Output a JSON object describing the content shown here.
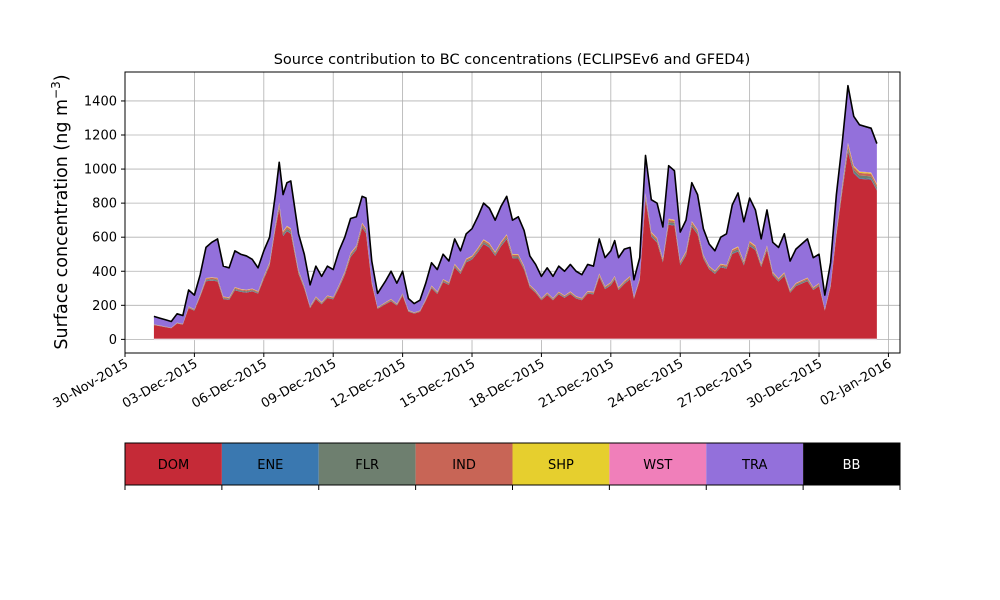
{
  "chart_data": {
    "type": "area",
    "stacked": true,
    "title": "Source contribution to BC concentrations (ECLIPSEv6 and GFED4)",
    "ylabel_main": "Surface concentration (ng m",
    "ylabel_sup": "−3",
    "ylabel_close": ")",
    "xlim": [
      "2015-11-30T00:00",
      "2016-01-02T12:00"
    ],
    "ylim": [
      -80,
      1570
    ],
    "yticks": [
      0,
      200,
      400,
      600,
      800,
      1000,
      1200,
      1400
    ],
    "ytick_labels": [
      "0",
      "200",
      "400",
      "600",
      "800",
      "1000",
      "1200",
      "1400"
    ],
    "xticks": [
      "2015-11-30",
      "2015-12-03",
      "2015-12-06",
      "2015-12-09",
      "2015-12-12",
      "2015-12-15",
      "2015-12-18",
      "2015-12-21",
      "2015-12-24",
      "2015-12-27",
      "2015-12-30",
      "2016-01-02"
    ],
    "xtick_labels": [
      "30-Nov-2015",
      "03-Dec-2015",
      "06-Dec-2015",
      "09-Dec-2015",
      "12-Dec-2015",
      "15-Dec-2015",
      "18-Dec-2015",
      "21-Dec-2015",
      "24-Dec-2015",
      "27-Dec-2015",
      "30-Dec-2015",
      "02-Jan-2016"
    ],
    "grid": true,
    "legend_position": "below",
    "series_order": [
      "DOM",
      "ENE",
      "FLR",
      "IND",
      "SHP",
      "WST",
      "TRA",
      "BB"
    ],
    "series_colors": {
      "DOM": "#c52a37",
      "ENE": "#3a78b0",
      "FLR": "#6e7f6f",
      "IND": "#c86556",
      "SHP": "#e6cf2e",
      "WST": "#f07fba",
      "TRA": "#9370db",
      "BB": "#000000"
    },
    "legend_text_colors": {
      "DOM": "#000000",
      "ENE": "#000000",
      "FLR": "#000000",
      "IND": "#000000",
      "SHP": "#000000",
      "WST": "#000000",
      "TRA": "#000000",
      "BB": "#ffffff"
    },
    "total_points": [
      [
        "2015-12-01T06:00",
        135
      ],
      [
        "2015-12-01T12:00",
        125
      ],
      [
        "2015-12-01T18:00",
        115
      ],
      [
        "2015-12-02T00:00",
        105
      ],
      [
        "2015-12-02T06:00",
        150
      ],
      [
        "2015-12-02T12:00",
        140
      ],
      [
        "2015-12-02T18:00",
        290
      ],
      [
        "2015-12-03T00:00",
        260
      ],
      [
        "2015-12-03T06:00",
        380
      ],
      [
        "2015-12-03T12:00",
        540
      ],
      [
        "2015-12-03T18:00",
        570
      ],
      [
        "2015-12-04T00:00",
        590
      ],
      [
        "2015-12-04T06:00",
        430
      ],
      [
        "2015-12-04T12:00",
        420
      ],
      [
        "2015-12-04T18:00",
        520
      ],
      [
        "2015-12-05T00:00",
        500
      ],
      [
        "2015-12-05T06:00",
        490
      ],
      [
        "2015-12-05T12:00",
        470
      ],
      [
        "2015-12-05T18:00",
        420
      ],
      [
        "2015-12-06T00:00",
        520
      ],
      [
        "2015-12-06T06:00",
        600
      ],
      [
        "2015-12-06T12:00",
        850
      ],
      [
        "2015-12-06T16:00",
        1040
      ],
      [
        "2015-12-06T20:00",
        850
      ],
      [
        "2015-12-07T00:00",
        920
      ],
      [
        "2015-12-07T04:00",
        930
      ],
      [
        "2015-12-07T12:00",
        620
      ],
      [
        "2015-12-07T18:00",
        500
      ],
      [
        "2015-12-08T00:00",
        320
      ],
      [
        "2015-12-08T06:00",
        430
      ],
      [
        "2015-12-08T12:00",
        370
      ],
      [
        "2015-12-08T18:00",
        430
      ],
      [
        "2015-12-09T00:00",
        410
      ],
      [
        "2015-12-09T06:00",
        520
      ],
      [
        "2015-12-09T12:00",
        600
      ],
      [
        "2015-12-09T18:00",
        710
      ],
      [
        "2015-12-10T00:00",
        720
      ],
      [
        "2015-12-10T06:00",
        840
      ],
      [
        "2015-12-10T10:00",
        830
      ],
      [
        "2015-12-10T16:00",
        460
      ],
      [
        "2015-12-10T22:00",
        270
      ],
      [
        "2015-12-11T06:00",
        340
      ],
      [
        "2015-12-11T12:00",
        400
      ],
      [
        "2015-12-11T18:00",
        330
      ],
      [
        "2015-12-12T00:00",
        400
      ],
      [
        "2015-12-12T06:00",
        240
      ],
      [
        "2015-12-12T12:00",
        210
      ],
      [
        "2015-12-12T18:00",
        230
      ],
      [
        "2015-12-13T00:00",
        330
      ],
      [
        "2015-12-13T06:00",
        450
      ],
      [
        "2015-12-13T12:00",
        410
      ],
      [
        "2015-12-13T18:00",
        500
      ],
      [
        "2015-12-14T00:00",
        460
      ],
      [
        "2015-12-14T06:00",
        590
      ],
      [
        "2015-12-14T12:00",
        520
      ],
      [
        "2015-12-14T18:00",
        620
      ],
      [
        "2015-12-15T00:00",
        650
      ],
      [
        "2015-12-15T06:00",
        720
      ],
      [
        "2015-12-15T12:00",
        800
      ],
      [
        "2015-12-15T18:00",
        770
      ],
      [
        "2015-12-16T00:00",
        700
      ],
      [
        "2015-12-16T06:00",
        780
      ],
      [
        "2015-12-16T12:00",
        840
      ],
      [
        "2015-12-16T18:00",
        700
      ],
      [
        "2015-12-17T00:00",
        720
      ],
      [
        "2015-12-17T06:00",
        640
      ],
      [
        "2015-12-17T12:00",
        490
      ],
      [
        "2015-12-17T18:00",
        440
      ],
      [
        "2015-12-18T00:00",
        370
      ],
      [
        "2015-12-18T06:00",
        420
      ],
      [
        "2015-12-18T12:00",
        370
      ],
      [
        "2015-12-18T18:00",
        430
      ],
      [
        "2015-12-19T00:00",
        400
      ],
      [
        "2015-12-19T06:00",
        440
      ],
      [
        "2015-12-19T12:00",
        400
      ],
      [
        "2015-12-19T18:00",
        380
      ],
      [
        "2015-12-20T00:00",
        440
      ],
      [
        "2015-12-20T06:00",
        430
      ],
      [
        "2015-12-20T12:00",
        590
      ],
      [
        "2015-12-20T18:00",
        480
      ],
      [
        "2015-12-21T00:00",
        520
      ],
      [
        "2015-12-21T04:00",
        580
      ],
      [
        "2015-12-21T08:00",
        480
      ],
      [
        "2015-12-21T14:00",
        530
      ],
      [
        "2015-12-21T20:00",
        540
      ],
      [
        "2015-12-22T00:00",
        350
      ],
      [
        "2015-12-22T06:00",
        480
      ],
      [
        "2015-12-22T12:00",
        1080
      ],
      [
        "2015-12-22T18:00",
        820
      ],
      [
        "2015-12-23T00:00",
        800
      ],
      [
        "2015-12-23T06:00",
        660
      ],
      [
        "2015-12-23T12:00",
        1020
      ],
      [
        "2015-12-23T18:00",
        990
      ],
      [
        "2015-12-24T00:00",
        630
      ],
      [
        "2015-12-24T06:00",
        700
      ],
      [
        "2015-12-24T12:00",
        920
      ],
      [
        "2015-12-24T18:00",
        850
      ],
      [
        "2015-12-25T00:00",
        650
      ],
      [
        "2015-12-25T06:00",
        560
      ],
      [
        "2015-12-25T12:00",
        520
      ],
      [
        "2015-12-25T18:00",
        600
      ],
      [
        "2015-12-26T00:00",
        620
      ],
      [
        "2015-12-26T06:00",
        790
      ],
      [
        "2015-12-26T12:00",
        860
      ],
      [
        "2015-12-26T18:00",
        690
      ],
      [
        "2015-12-27T00:00",
        830
      ],
      [
        "2015-12-27T06:00",
        760
      ],
      [
        "2015-12-27T12:00",
        590
      ],
      [
        "2015-12-27T18:00",
        760
      ],
      [
        "2015-12-28T00:00",
        570
      ],
      [
        "2015-12-28T06:00",
        540
      ],
      [
        "2015-12-28T12:00",
        620
      ],
      [
        "2015-12-28T18:00",
        460
      ],
      [
        "2015-12-29T00:00",
        530
      ],
      [
        "2015-12-29T06:00",
        560
      ],
      [
        "2015-12-29T12:00",
        590
      ],
      [
        "2015-12-29T18:00",
        480
      ],
      [
        "2015-12-30T00:00",
        500
      ],
      [
        "2015-12-30T06:00",
        260
      ],
      [
        "2015-12-30T12:00",
        450
      ],
      [
        "2015-12-30T18:00",
        850
      ],
      [
        "2015-12-31T00:00",
        1150
      ],
      [
        "2015-12-31T06:00",
        1490
      ],
      [
        "2015-12-31T12:00",
        1310
      ],
      [
        "2015-12-31T18:00",
        1260
      ],
      [
        "2016-01-01T00:00",
        1250
      ],
      [
        "2016-01-01T06:00",
        1240
      ],
      [
        "2016-01-01T12:00",
        1150
      ]
    ],
    "dom_fraction_points": [
      [
        "2015-12-01T06:00",
        0.62
      ],
      [
        "2015-12-02T12:00",
        0.62
      ],
      [
        "2015-12-03T06:00",
        0.66
      ],
      [
        "2015-12-04T06:00",
        0.55
      ],
      [
        "2015-12-05T06:00",
        0.56
      ],
      [
        "2015-12-06T12:00",
        0.76
      ],
      [
        "2015-12-07T12:00",
        0.62
      ],
      [
        "2015-12-08T06:00",
        0.55
      ],
      [
        "2015-12-09T06:00",
        0.58
      ],
      [
        "2015-12-10T06:00",
        0.78
      ],
      [
        "2015-12-11T12:00",
        0.56
      ],
      [
        "2015-12-12T12:00",
        0.72
      ],
      [
        "2015-12-13T12:00",
        0.65
      ],
      [
        "2015-12-14T12:00",
        0.74
      ],
      [
        "2015-12-15T12:00",
        0.7
      ],
      [
        "2015-12-16T12:00",
        0.7
      ],
      [
        "2015-12-17T12:00",
        0.62
      ],
      [
        "2015-12-18T12:00",
        0.62
      ],
      [
        "2015-12-19T12:00",
        0.6
      ],
      [
        "2015-12-20T12:00",
        0.62
      ],
      [
        "2015-12-21T12:00",
        0.6
      ],
      [
        "2015-12-22T12:00",
        0.76
      ],
      [
        "2015-12-23T12:00",
        0.66
      ],
      [
        "2015-12-24T12:00",
        0.72
      ],
      [
        "2015-12-25T12:00",
        0.74
      ],
      [
        "2015-12-26T12:00",
        0.6
      ],
      [
        "2015-12-27T12:00",
        0.72
      ],
      [
        "2015-12-28T12:00",
        0.6
      ],
      [
        "2015-12-29T12:00",
        0.58
      ],
      [
        "2015-12-30T06:00",
        0.65
      ],
      [
        "2015-12-31T00:00",
        0.75
      ],
      [
        "2015-12-31T06:00",
        0.74
      ],
      [
        "2016-01-01T12:00",
        0.76
      ]
    ],
    "minor_fractions": {
      "ENE": 0.004,
      "FLR": 0.012,
      "IND": 0.012,
      "SHP": 0.005,
      "WST": 0.002
    }
  }
}
